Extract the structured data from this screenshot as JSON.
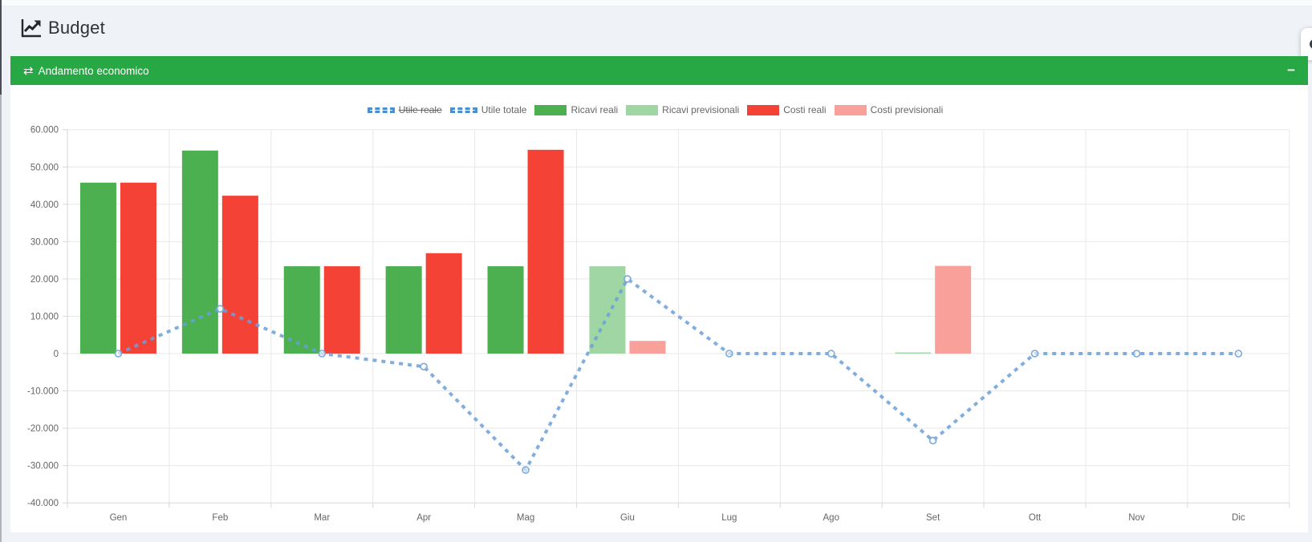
{
  "page": {
    "title": "Budget"
  },
  "floating_button": {
    "icon": "gear"
  },
  "panel": {
    "title": "Andamento economico",
    "header_icon": "⇄",
    "collapse_label": "−",
    "header_color": "#28a745"
  },
  "chart_data": {
    "type": "bar",
    "title": "Andamento economico",
    "categories": [
      "Gen",
      "Feb",
      "Mar",
      "Apr",
      "Mag",
      "Giu",
      "Lug",
      "Ago",
      "Set",
      "Ott",
      "Nov",
      "Dic"
    ],
    "series": [
      {
        "name": "Utile reale",
        "type": "line",
        "dashed": true,
        "hidden": true,
        "color": "#4a8fd0",
        "values": []
      },
      {
        "name": "Utile totale",
        "type": "line",
        "dashed": true,
        "hidden": false,
        "color": "#6ba0d8",
        "values": [
          0,
          12000,
          0,
          -3500,
          -31200,
          20000,
          0,
          0,
          -23300,
          0,
          0,
          0
        ]
      },
      {
        "name": "Ricavi reali",
        "type": "bar",
        "color": "#4caf50",
        "values": [
          45800,
          54400,
          23400,
          23400,
          23400,
          0,
          0,
          0,
          0,
          0,
          0,
          0
        ]
      },
      {
        "name": "Ricavi previsionali",
        "type": "bar",
        "color": "#a0d6a3",
        "values": [
          0,
          0,
          0,
          0,
          0,
          23400,
          0,
          0,
          300,
          0,
          0,
          0
        ]
      },
      {
        "name": "Costi reali",
        "type": "bar",
        "color": "#f44336",
        "values": [
          45800,
          42300,
          23400,
          26900,
          54600,
          0,
          0,
          0,
          0,
          0,
          0,
          0
        ]
      },
      {
        "name": "Costi previsionali",
        "type": "bar",
        "color": "#f9a09a",
        "values": [
          0,
          0,
          0,
          0,
          0,
          3400,
          0,
          0,
          23500,
          0,
          0,
          0
        ]
      }
    ],
    "legend": [
      {
        "label": "Utile reale",
        "swatch": "dashed",
        "color": "#4a8fd0",
        "struck": true
      },
      {
        "label": "Utile totale",
        "swatch": "dashed",
        "color": "#4a8fd0",
        "struck": false
      },
      {
        "label": "Ricavi reali",
        "swatch": "solid",
        "color": "#4caf50",
        "struck": false
      },
      {
        "label": "Ricavi previsionali",
        "swatch": "solid",
        "color": "#a0d6a3",
        "struck": false
      },
      {
        "label": "Costi reali",
        "swatch": "solid",
        "color": "#f44336",
        "struck": false
      },
      {
        "label": "Costi previsionali",
        "swatch": "solid",
        "color": "#f9a09a",
        "struck": false
      }
    ],
    "legend_position": "top",
    "grid": true,
    "ylim": [
      -40000,
      60000
    ],
    "ytick_step": 10000,
    "ytick_labels": [
      "60.000",
      "50.000",
      "40.000",
      "30.000",
      "20.000",
      "10.000",
      "0",
      "-10.000",
      "-20.000",
      "-30.000",
      "-40.000"
    ],
    "colors": {
      "grid": "#e8e8e8",
      "axis_border": "#d7d7d7",
      "tick_text": "#666666",
      "line": "#6ba0d8",
      "point_stroke": "#7aa9dc"
    }
  }
}
